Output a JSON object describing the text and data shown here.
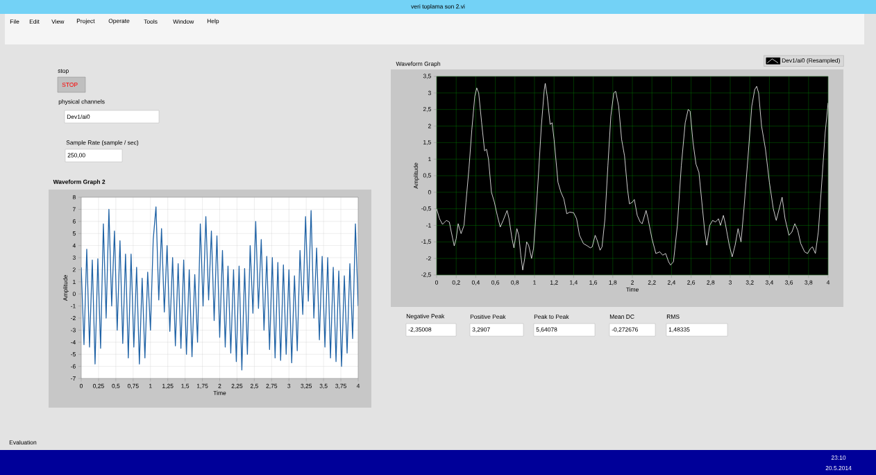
{
  "chart_data": [
    {
      "type": "line",
      "title": "Waveform Graph",
      "xlabel": "Time",
      "ylabel": "Amplitude",
      "grid": true,
      "legend": "top right",
      "line_style": "solid",
      "xlim": [
        0,
        4
      ],
      "ylim": [
        -2.5,
        3.5
      ],
      "xticks": [
        0,
        {
          "value": 0.2,
          "label": "0,2"
        },
        {
          "value": 0.4,
          "label": "0,4"
        },
        {
          "value": 0.6,
          "label": "0,6"
        },
        {
          "value": 0.8,
          "label": "0,8"
        },
        1,
        {
          "value": 1.2,
          "label": "1,2"
        },
        {
          "value": 1.4,
          "label": "1,4"
        },
        {
          "value": 1.6,
          "label": "1,6"
        },
        {
          "value": 1.8,
          "label": "1,8"
        },
        2,
        {
          "value": 2.2,
          "label": "2,2"
        },
        {
          "value": 2.4,
          "label": "2,4"
        },
        {
          "value": 2.6,
          "label": "2,6"
        },
        {
          "value": 2.8,
          "label": "2,8"
        },
        3,
        {
          "value": 3.2,
          "label": "3,2"
        },
        {
          "value": 3.4,
          "label": "3,4"
        },
        {
          "value": 3.6,
          "label": "3,6"
        },
        {
          "value": 3.8,
          "label": "3,8"
        },
        4
      ],
      "yticks": [
        {
          "value": -2.5,
          "label": "-2,5"
        },
        -2,
        {
          "value": -1.5,
          "label": "-1,5"
        },
        -1,
        {
          "value": -0.5,
          "label": "-0,5"
        },
        0,
        {
          "value": 0.5,
          "label": "0,5"
        },
        1,
        {
          "value": 1.5,
          "label": "1,5"
        },
        2,
        {
          "value": 2.5,
          "label": "2,5"
        },
        3,
        {
          "value": 3.5,
          "label": "3,5"
        }
      ],
      "series": [
        {
          "name": "Dev1/ai0 (Resampled)",
          "color": "#ffffff",
          "x": [
            0,
            0.03,
            0.06,
            0.1,
            0.13,
            0.15,
            0.18,
            0.2,
            0.22,
            0.25,
            0.28,
            0.3,
            0.33,
            0.36,
            0.39,
            0.41,
            0.43,
            0.46,
            0.49,
            0.51,
            0.53,
            0.56,
            0.59,
            0.62,
            0.65,
            0.68,
            0.72,
            0.74,
            0.77,
            0.79,
            0.82,
            0.84,
            0.86,
            0.88,
            0.9,
            0.92,
            0.94,
            0.97,
            0.99,
            1.01,
            1.04,
            1.07,
            1.1,
            1.11,
            1.13,
            1.16,
            1.18,
            1.2,
            1.24,
            1.27,
            1.3,
            1.33,
            1.36,
            1.4,
            1.43,
            1.46,
            1.5,
            1.54,
            1.57,
            1.59,
            1.62,
            1.64,
            1.67,
            1.69,
            1.72,
            1.75,
            1.78,
            1.81,
            1.83,
            1.86,
            1.89,
            1.92,
            1.95,
            1.97,
            2.0,
            2.02,
            2.05,
            2.08,
            2.1,
            2.14,
            2.16,
            2.2,
            2.24,
            2.28,
            2.31,
            2.34,
            2.37,
            2.39,
            2.42,
            2.46,
            2.5,
            2.54,
            2.57,
            2.59,
            2.62,
            2.65,
            2.68,
            2.71,
            2.74,
            2.76,
            2.79,
            2.82,
            2.85,
            2.88,
            2.9,
            2.93,
            2.95,
            2.99,
            3.02,
            3.05,
            3.08,
            3.11,
            3.14,
            3.18,
            3.22,
            3.25,
            3.27,
            3.29,
            3.32,
            3.36,
            3.4,
            3.44,
            3.47,
            3.5,
            3.53,
            3.56,
            3.6,
            3.63,
            3.66,
            3.69,
            3.72,
            3.76,
            3.79,
            3.82,
            3.84,
            3.87,
            3.9,
            3.94,
            3.97,
            4.0
          ],
          "values": [
            -0.5,
            -0.8,
            -0.97,
            -0.85,
            -0.9,
            -1.2,
            -1.62,
            -1.4,
            -0.95,
            -1.25,
            -1.0,
            -0.3,
            0.7,
            1.9,
            2.9,
            3.15,
            3.0,
            2.1,
            1.25,
            1.3,
            1.0,
            0.0,
            -0.3,
            -0.7,
            -1.05,
            -0.85,
            -0.55,
            -0.8,
            -1.4,
            -1.68,
            -1.1,
            -1.3,
            -1.9,
            -2.35,
            -2.0,
            -1.5,
            -1.6,
            -2.0,
            -1.7,
            -0.9,
            0.5,
            2.0,
            3.1,
            3.29,
            2.9,
            2.05,
            2.1,
            1.6,
            0.3,
            0.0,
            -0.2,
            -0.65,
            -0.6,
            -0.62,
            -0.8,
            -1.3,
            -1.55,
            -1.62,
            -1.68,
            -1.65,
            -1.3,
            -1.45,
            -1.75,
            -1.65,
            -0.8,
            0.8,
            2.3,
            3.0,
            3.05,
            2.6,
            1.6,
            1.1,
            0.1,
            -0.35,
            -0.3,
            -0.22,
            -0.7,
            -0.9,
            -0.95,
            -0.55,
            -0.8,
            -1.4,
            -1.85,
            -1.8,
            -1.9,
            -1.85,
            -2.1,
            -2.2,
            -2.1,
            -1.0,
            0.8,
            2.1,
            2.5,
            2.45,
            1.5,
            0.85,
            0.6,
            -0.3,
            -1.2,
            -1.6,
            -1.0,
            -0.85,
            -0.9,
            -0.8,
            -1.0,
            -0.7,
            -0.95,
            -1.6,
            -1.95,
            -1.6,
            -1.1,
            -1.5,
            -0.5,
            1.0,
            2.6,
            3.1,
            3.2,
            3.0,
            2.0,
            1.3,
            0.3,
            -0.5,
            -0.85,
            -0.5,
            -0.15,
            -0.8,
            -1.3,
            -1.2,
            -0.95,
            -1.15,
            -1.55,
            -1.8,
            -1.85,
            -1.7,
            -1.65,
            -1.85,
            -1.2,
            0.5,
            1.8,
            2.7
          ]
        }
      ]
    },
    {
      "type": "line",
      "title": "Waveform Graph 2",
      "xlabel": "Time",
      "ylabel": "Amplitude",
      "grid": true,
      "line_style": "solid",
      "xlim": [
        0,
        4
      ],
      "ylim": [
        -7,
        8
      ],
      "xticks": [
        0,
        {
          "value": 0.25,
          "label": "0,25"
        },
        {
          "value": 0.5,
          "label": "0,5"
        },
        {
          "value": 0.75,
          "label": "0,75"
        },
        1,
        {
          "value": 1.25,
          "label": "1,25"
        },
        {
          "value": 1.5,
          "label": "1,5"
        },
        {
          "value": 1.75,
          "label": "1,75"
        },
        2,
        {
          "value": 2.25,
          "label": "2,25"
        },
        {
          "value": 2.5,
          "label": "2,5"
        },
        {
          "value": 2.75,
          "label": "2,75"
        },
        3,
        {
          "value": 3.25,
          "label": "3,25"
        },
        {
          "value": 3.5,
          "label": "3,5"
        },
        {
          "value": 3.75,
          "label": "3,75"
        },
        4
      ],
      "yticks": [
        -7,
        -6,
        -5,
        -4,
        -3,
        -2,
        -1,
        0,
        1,
        2,
        3,
        4,
        5,
        6,
        7,
        8
      ],
      "series": [
        {
          "color": "#1f62a5",
          "x": [
            0,
            0.04,
            0.08,
            0.12,
            0.16,
            0.2,
            0.24,
            0.28,
            0.32,
            0.36,
            0.4,
            0.44,
            0.48,
            0.52,
            0.56,
            0.6,
            0.64,
            0.68,
            0.72,
            0.76,
            0.8,
            0.84,
            0.88,
            0.92,
            0.96,
            1.0,
            1.04,
            1.08,
            1.12,
            1.16,
            1.2,
            1.24,
            1.28,
            1.32,
            1.36,
            1.4,
            1.44,
            1.48,
            1.52,
            1.56,
            1.6,
            1.64,
            1.68,
            1.72,
            1.76,
            1.8,
            1.84,
            1.88,
            1.92,
            1.96,
            2.0,
            2.04,
            2.08,
            2.12,
            2.16,
            2.2,
            2.24,
            2.28,
            2.32,
            2.36,
            2.4,
            2.44,
            2.48,
            2.52,
            2.56,
            2.6,
            2.64,
            2.68,
            2.72,
            2.76,
            2.8,
            2.84,
            2.88,
            2.92,
            2.96,
            3.0,
            3.04,
            3.08,
            3.12,
            3.16,
            3.2,
            3.24,
            3.28,
            3.32,
            3.36,
            3.4,
            3.44,
            3.48,
            3.52,
            3.56,
            3.6,
            3.64,
            3.68,
            3.72,
            3.76,
            3.8,
            3.84,
            3.88,
            3.92,
            3.96,
            4.0
          ],
          "values": [
            2.2,
            -4.2,
            3.7,
            -4.4,
            2.8,
            -5.8,
            2.9,
            -4.5,
            5.8,
            -2.0,
            7.0,
            -1.0,
            5.2,
            -3.0,
            4.4,
            -4.1,
            3.3,
            -5.3,
            3.3,
            -4.4,
            2.2,
            -5.8,
            1.3,
            -5.3,
            1.8,
            -3.0,
            4.5,
            7.2,
            -0.5,
            5.4,
            -1.5,
            4.0,
            -3.1,
            3.0,
            -4.3,
            2.5,
            -4.5,
            2.8,
            -5.0,
            2.0,
            -5.2,
            1.6,
            -4.0,
            5.8,
            -1.0,
            6.4,
            -0.5,
            5.2,
            -2.2,
            4.8,
            -3.6,
            3.6,
            -4.4,
            2.3,
            -4.9,
            2.0,
            -5.6,
            2.3,
            -6.3,
            2.1,
            -5.0,
            4.0,
            -1.6,
            6.0,
            -1.2,
            4.5,
            -3.0,
            3.1,
            -4.6,
            3.0,
            -5.3,
            2.6,
            -5.5,
            2.4,
            -5.0,
            2.0,
            -5.7,
            1.5,
            -4.7,
            3.6,
            -1.7,
            6.4,
            -0.6,
            6.9,
            -2.0,
            3.8,
            -3.8,
            3.1,
            -4.4,
            3.0,
            -5.3,
            2.2,
            -5.6,
            1.9,
            -6.0,
            1.5,
            -4.9,
            2.5,
            -3.7,
            5.8,
            -1.0
          ]
        }
      ]
    },
    {
      "type": "other",
      "annotations": [
        "veri toplama son 2.vi",
        "File",
        "Edit",
        "View",
        "Project",
        "Operate",
        "Tools",
        "Window",
        "Help",
        "stop",
        "STOP",
        "physical channels",
        "Dev1/ai0",
        "Sample Rate (sample / sec)",
        "250,00",
        "Negative Peak",
        "-2,35008",
        "Positive Peak",
        "3,2907",
        "Peak to Peak",
        "5,64078",
        "Mean DC",
        "-0,272676",
        "RMS",
        "1,48335",
        "Evaluation",
        "23:10",
        "20.5.2014"
      ]
    }
  ]
}
